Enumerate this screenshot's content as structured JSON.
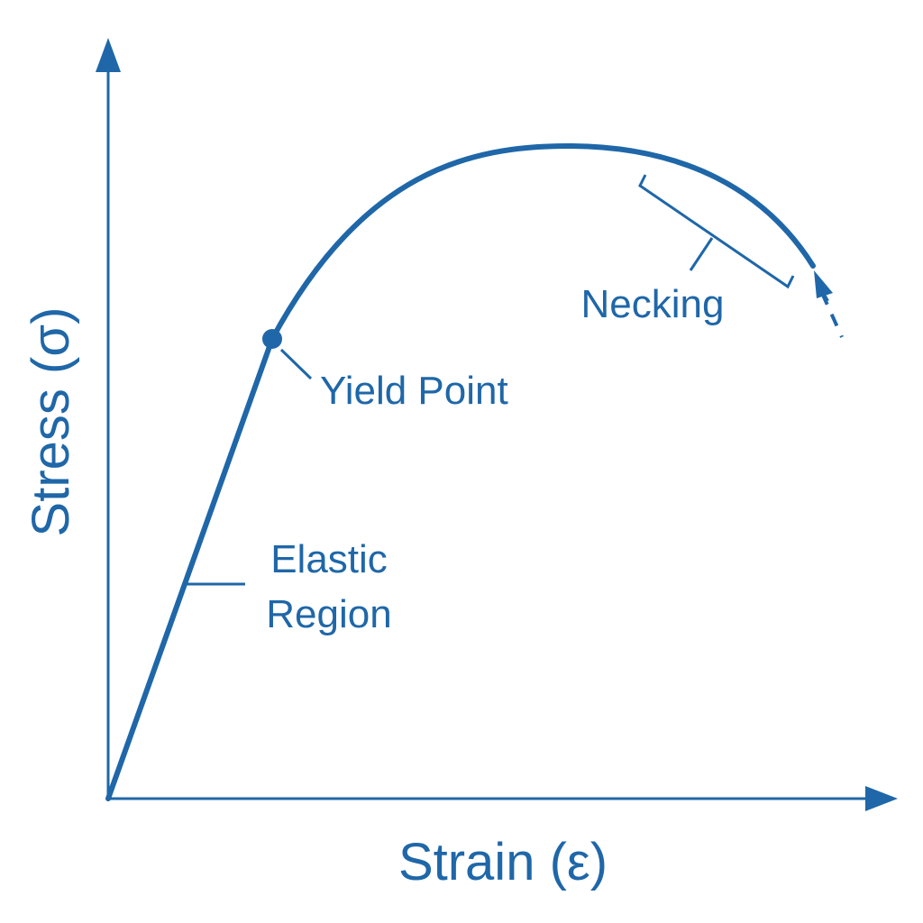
{
  "diagram": {
    "x_axis_label": "Strain (ε)",
    "y_axis_label": "Stress (σ)",
    "annotations": {
      "yield_point": "Yield Point",
      "elastic_line1": "Elastic",
      "elastic_line2": "Region",
      "necking": "Necking"
    },
    "colors": {
      "primary": "#1f67a8",
      "background": "#ffffff"
    }
  }
}
